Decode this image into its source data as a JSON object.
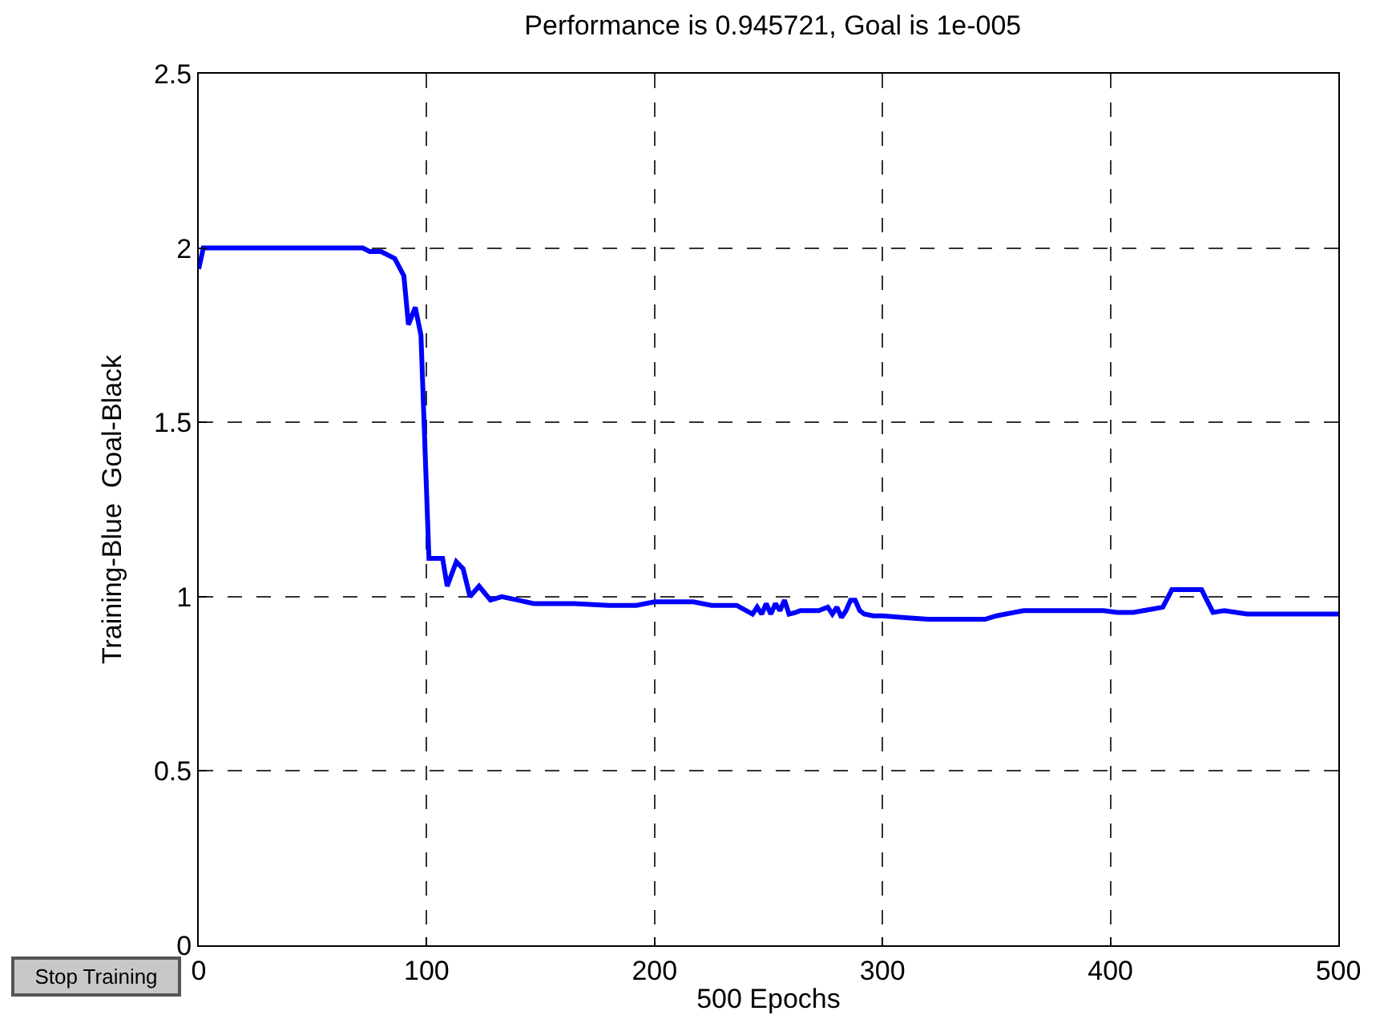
{
  "chart_data": {
    "type": "line",
    "title": "Performance is 0.945721, Goal is 1e-005",
    "xlabel": "500 Epochs",
    "ylabel": "Training-Blue  Goal-Black",
    "series": [
      {
        "color": "#0000ff",
        "x": [
          0,
          2,
          20,
          40,
          60,
          72,
          75,
          80,
          86,
          90,
          92,
          95,
          97.5,
          101,
          107,
          109,
          113,
          116,
          119,
          123,
          128,
          133,
          140,
          147,
          165,
          180,
          192,
          200,
          217,
          225,
          236,
          243,
          245,
          247,
          249,
          251,
          253,
          255,
          257,
          259,
          262,
          264,
          268,
          272,
          276,
          278,
          280,
          282,
          284,
          286,
          288,
          290,
          292,
          296,
          300,
          310,
          320,
          330,
          345,
          350,
          362,
          380,
          397,
          403,
          410,
          419,
          423,
          427,
          432,
          440,
          445,
          450,
          460,
          480,
          500
        ],
        "values": [
          1.94,
          2.0,
          2.0,
          2.0,
          2.0,
          2.0,
          1.99,
          1.99,
          1.97,
          1.92,
          1.78,
          1.83,
          1.75,
          1.11,
          1.11,
          1.03,
          1.1,
          1.08,
          1.0,
          1.03,
          0.99,
          1.0,
          0.99,
          0.98,
          0.98,
          0.975,
          0.975,
          0.985,
          0.985,
          0.975,
          0.975,
          0.95,
          0.97,
          0.95,
          0.98,
          0.95,
          0.98,
          0.96,
          0.99,
          0.95,
          0.955,
          0.96,
          0.96,
          0.96,
          0.97,
          0.95,
          0.97,
          0.94,
          0.96,
          0.99,
          0.99,
          0.96,
          0.95,
          0.945,
          0.945,
          0.94,
          0.935,
          0.935,
          0.935,
          0.945,
          0.96,
          0.96,
          0.96,
          0.955,
          0.955,
          0.965,
          0.97,
          1.02,
          1.02,
          1.02,
          0.955,
          0.96,
          0.95,
          0.95,
          0.95
        ]
      }
    ],
    "xlim": [
      0,
      500
    ],
    "xticks": [
      0,
      100,
      200,
      300,
      400,
      500
    ],
    "ylim": [
      0,
      2.5
    ],
    "yticks": [
      0,
      0.5,
      1,
      1.5,
      2,
      2.5
    ],
    "grid": true,
    "line_style": "solid",
    "marker": "none",
    "annotations": [
      "Stop Training"
    ]
  }
}
